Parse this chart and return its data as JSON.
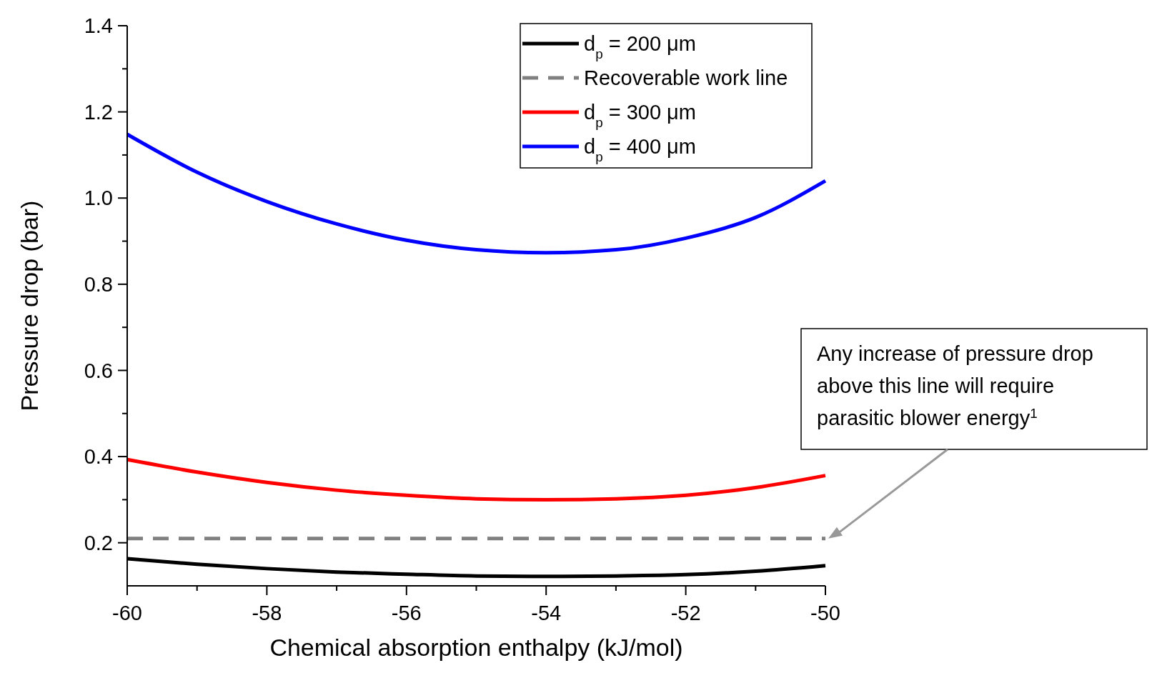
{
  "chart_data": {
    "type": "line",
    "xlabel": "Chemical absorption enthalpy (kJ/mol)",
    "ylabel": "Pressure drop (bar)",
    "x": [
      -60,
      -59,
      -58,
      -57,
      -56,
      -55,
      -54,
      -53,
      -52,
      -51,
      -50
    ],
    "series": [
      {
        "name": "d$_{p}$ = 200 μm",
        "color": "#000000",
        "values": [
          0.163,
          0.15,
          0.14,
          0.132,
          0.127,
          0.123,
          0.122,
          0.123,
          0.126,
          0.134,
          0.147
        ]
      },
      {
        "name": "Recoverable work line",
        "color": "#808080",
        "line_style": "dashed",
        "values": [
          0.21,
          0.21,
          0.21,
          0.21,
          0.21,
          0.21,
          0.21,
          0.21,
          0.21,
          0.21,
          0.21
        ]
      },
      {
        "name": "d$_{p}$ = 300 μm",
        "color": "#ff0000",
        "values": [
          0.393,
          0.364,
          0.34,
          0.322,
          0.31,
          0.302,
          0.3,
          0.302,
          0.31,
          0.328,
          0.356
        ]
      },
      {
        "name": "d$_{p}$ = 400 μm",
        "color": "#0000ff",
        "values": [
          1.148,
          1.06,
          0.992,
          0.94,
          0.902,
          0.88,
          0.873,
          0.88,
          0.907,
          0.955,
          1.04
        ]
      }
    ],
    "xlim": [
      -60,
      -50
    ],
    "xticks": [
      -60,
      {
        "value": -59,
        "label": null
      },
      -58,
      {
        "value": -57,
        "label": null
      },
      -56,
      {
        "value": -55,
        "label": null
      },
      -54,
      {
        "value": -53,
        "label": null
      },
      -52,
      {
        "value": -51,
        "label": null
      },
      -50
    ],
    "ylim": [
      0.1,
      1.4
    ],
    "yticks": [
      {
        "value": 0.2,
        "label": "0.2"
      },
      {
        "value": 0.3,
        "label": null
      },
      {
        "value": 0.4,
        "label": "0.4"
      },
      {
        "value": 0.5,
        "label": null
      },
      {
        "value": 0.6,
        "label": "0.6"
      },
      {
        "value": 0.7,
        "label": null
      },
      {
        "value": 0.8,
        "label": "0.8"
      },
      {
        "value": 0.9,
        "label": null
      },
      {
        "value": 1.0,
        "label": "1.0"
      },
      {
        "value": 1.1,
        "label": null
      },
      {
        "value": 1.2,
        "label": "1.2"
      },
      {
        "value": 1.3,
        "label": null
      },
      {
        "value": 1.4,
        "label": "1.4"
      }
    ],
    "grid": false,
    "legend": "top right",
    "marker": "none",
    "annotations": [
      "Any increase of pressure drop above this line will require parasitic blower energy$^{1}$"
    ]
  }
}
